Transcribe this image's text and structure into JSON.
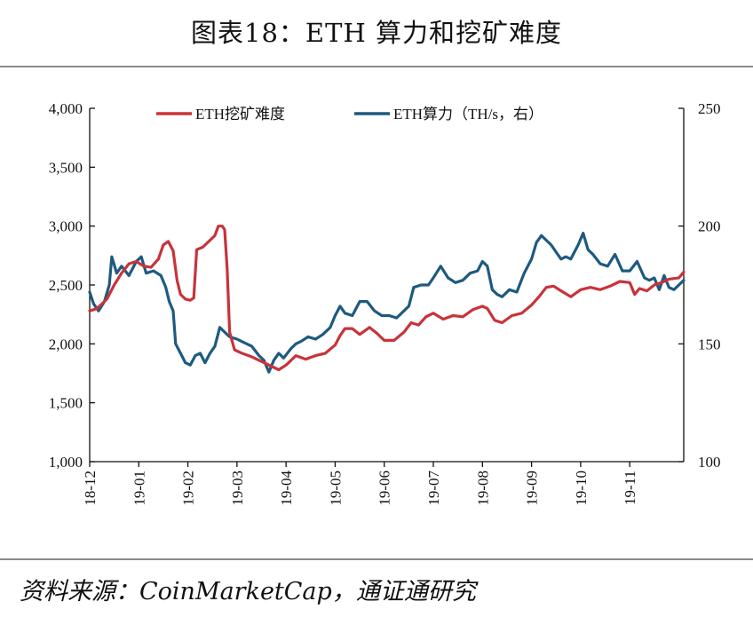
{
  "title": "图表18：ETH 算力和挖矿难度",
  "source": "资料来源：CoinMarketCap，通证通研究",
  "colors": {
    "difficulty": "#c8333a",
    "hashrate": "#1e5a80",
    "axis": "#111111"
  },
  "chart_data": {
    "type": "line",
    "x_tick_labels": [
      "18-12",
      "19-01",
      "19-02",
      "19-03",
      "19-04",
      "19-05",
      "19-06",
      "19-07",
      "19-08",
      "19-09",
      "19-10",
      "19-11"
    ],
    "y_left": {
      "ticks": [
        1000,
        1500,
        2000,
        2500,
        3000,
        3500,
        4000
      ],
      "tick_labels": [
        "1,000",
        "1,500",
        "2,000",
        "2,500",
        "3,000",
        "3,500",
        "4,000"
      ],
      "range": [
        1000,
        4000
      ]
    },
    "y_right": {
      "ticks": [
        100,
        150,
        200,
        250
      ],
      "tick_labels": [
        "100",
        "150",
        "200",
        "250"
      ],
      "range": [
        100,
        250
      ]
    },
    "x_range": [
      0,
      12.1
    ],
    "legend_position": "top",
    "series": [
      {
        "name": "ETH挖矿难度",
        "axis": "left",
        "points": [
          [
            0,
            2280
          ],
          [
            0.15,
            2300
          ],
          [
            0.35,
            2380
          ],
          [
            0.5,
            2500
          ],
          [
            0.65,
            2600
          ],
          [
            0.8,
            2680
          ],
          [
            0.95,
            2700
          ],
          [
            1.1,
            2660
          ],
          [
            1.25,
            2650
          ],
          [
            1.4,
            2720
          ],
          [
            1.5,
            2840
          ],
          [
            1.6,
            2870
          ],
          [
            1.7,
            2790
          ],
          [
            1.78,
            2540
          ],
          [
            1.85,
            2420
          ],
          [
            1.95,
            2380
          ],
          [
            2.05,
            2370
          ],
          [
            2.12,
            2390
          ],
          [
            2.18,
            2800
          ],
          [
            2.3,
            2820
          ],
          [
            2.45,
            2880
          ],
          [
            2.55,
            2920
          ],
          [
            2.62,
            3000
          ],
          [
            2.7,
            3000
          ],
          [
            2.75,
            2970
          ],
          [
            2.8,
            2640
          ],
          [
            2.85,
            2100
          ],
          [
            2.95,
            1950
          ],
          [
            3.1,
            1920
          ],
          [
            3.3,
            1890
          ],
          [
            3.5,
            1850
          ],
          [
            3.7,
            1810
          ],
          [
            3.85,
            1780
          ],
          [
            4.0,
            1820
          ],
          [
            4.2,
            1900
          ],
          [
            4.4,
            1870
          ],
          [
            4.6,
            1900
          ],
          [
            4.8,
            1920
          ],
          [
            5.0,
            1990
          ],
          [
            5.1,
            2070
          ],
          [
            5.2,
            2130
          ],
          [
            5.35,
            2130
          ],
          [
            5.5,
            2080
          ],
          [
            5.7,
            2140
          ],
          [
            5.85,
            2090
          ],
          [
            6.0,
            2030
          ],
          [
            6.2,
            2030
          ],
          [
            6.4,
            2100
          ],
          [
            6.55,
            2180
          ],
          [
            6.7,
            2160
          ],
          [
            6.85,
            2230
          ],
          [
            7.0,
            2260
          ],
          [
            7.2,
            2210
          ],
          [
            7.4,
            2240
          ],
          [
            7.6,
            2230
          ],
          [
            7.8,
            2290
          ],
          [
            8.0,
            2320
          ],
          [
            8.1,
            2300
          ],
          [
            8.25,
            2200
          ],
          [
            8.4,
            2180
          ],
          [
            8.6,
            2240
          ],
          [
            8.8,
            2260
          ],
          [
            9.0,
            2330
          ],
          [
            9.15,
            2400
          ],
          [
            9.3,
            2480
          ],
          [
            9.45,
            2490
          ],
          [
            9.6,
            2450
          ],
          [
            9.8,
            2400
          ],
          [
            10.0,
            2460
          ],
          [
            10.2,
            2480
          ],
          [
            10.4,
            2460
          ],
          [
            10.6,
            2490
          ],
          [
            10.8,
            2530
          ],
          [
            11.0,
            2520
          ],
          [
            11.1,
            2420
          ],
          [
            11.2,
            2470
          ],
          [
            11.35,
            2450
          ],
          [
            11.5,
            2500
          ],
          [
            11.65,
            2520
          ],
          [
            11.8,
            2550
          ],
          [
            12.0,
            2560
          ],
          [
            12.1,
            2610
          ]
        ]
      },
      {
        "name": "ETH算力（TH/s，右）",
        "axis": "right",
        "points": [
          [
            0,
            172
          ],
          [
            0.08,
            167
          ],
          [
            0.18,
            164
          ],
          [
            0.3,
            168
          ],
          [
            0.4,
            175
          ],
          [
            0.45,
            187
          ],
          [
            0.55,
            180
          ],
          [
            0.65,
            183
          ],
          [
            0.8,
            179
          ],
          [
            0.95,
            185
          ],
          [
            1.05,
            187
          ],
          [
            1.15,
            180
          ],
          [
            1.3,
            181
          ],
          [
            1.45,
            179
          ],
          [
            1.55,
            174
          ],
          [
            1.62,
            168
          ],
          [
            1.7,
            164
          ],
          [
            1.75,
            150
          ],
          [
            1.85,
            146
          ],
          [
            1.95,
            142
          ],
          [
            2.05,
            141
          ],
          [
            2.15,
            145
          ],
          [
            2.25,
            146
          ],
          [
            2.35,
            142
          ],
          [
            2.45,
            146
          ],
          [
            2.55,
            149
          ],
          [
            2.65,
            157
          ],
          [
            2.75,
            155
          ],
          [
            2.85,
            153
          ],
          [
            3.0,
            152
          ],
          [
            3.1,
            151
          ],
          [
            3.2,
            150
          ],
          [
            3.3,
            149
          ],
          [
            3.45,
            145
          ],
          [
            3.55,
            143
          ],
          [
            3.65,
            138
          ],
          [
            3.75,
            143
          ],
          [
            3.85,
            146
          ],
          [
            3.95,
            144
          ],
          [
            4.1,
            148
          ],
          [
            4.2,
            150
          ],
          [
            4.3,
            151
          ],
          [
            4.45,
            153
          ],
          [
            4.6,
            152
          ],
          [
            4.75,
            154
          ],
          [
            4.9,
            157
          ],
          [
            5.0,
            162
          ],
          [
            5.1,
            166
          ],
          [
            5.2,
            163
          ],
          [
            5.35,
            162
          ],
          [
            5.5,
            168
          ],
          [
            5.65,
            168
          ],
          [
            5.8,
            164
          ],
          [
            5.95,
            162
          ],
          [
            6.1,
            162
          ],
          [
            6.25,
            161
          ],
          [
            6.4,
            164
          ],
          [
            6.5,
            166
          ],
          [
            6.6,
            174
          ],
          [
            6.75,
            175
          ],
          [
            6.9,
            175
          ],
          [
            7.0,
            178
          ],
          [
            7.15,
            183
          ],
          [
            7.3,
            178
          ],
          [
            7.45,
            176
          ],
          [
            7.6,
            177
          ],
          [
            7.75,
            180
          ],
          [
            7.9,
            181
          ],
          [
            8.0,
            185
          ],
          [
            8.1,
            183
          ],
          [
            8.2,
            173
          ],
          [
            8.3,
            171
          ],
          [
            8.4,
            170
          ],
          [
            8.55,
            173
          ],
          [
            8.7,
            172
          ],
          [
            8.85,
            180
          ],
          [
            9.0,
            186
          ],
          [
            9.1,
            193
          ],
          [
            9.2,
            196
          ],
          [
            9.3,
            194
          ],
          [
            9.4,
            192
          ],
          [
            9.5,
            189
          ],
          [
            9.6,
            186
          ],
          [
            9.7,
            187
          ],
          [
            9.8,
            186
          ],
          [
            9.95,
            192
          ],
          [
            10.05,
            197
          ],
          [
            10.15,
            190
          ],
          [
            10.25,
            188
          ],
          [
            10.4,
            184
          ],
          [
            10.55,
            183
          ],
          [
            10.7,
            188
          ],
          [
            10.85,
            181
          ],
          [
            11.0,
            181
          ],
          [
            11.15,
            185
          ],
          [
            11.3,
            178
          ],
          [
            11.4,
            177
          ],
          [
            11.5,
            178
          ],
          [
            11.6,
            173
          ],
          [
            11.7,
            179
          ],
          [
            11.8,
            174
          ],
          [
            11.9,
            173
          ],
          [
            12.0,
            175
          ],
          [
            12.1,
            177
          ]
        ]
      }
    ]
  }
}
